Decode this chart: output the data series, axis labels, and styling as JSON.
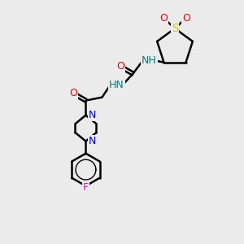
{
  "background_color": "#ebebeb",
  "bond_color": "#000000",
  "atom_colors": {
    "N": "#0000ff",
    "O": "#ff0000",
    "S": "#cccc00",
    "F": "#ff00ff",
    "H_label": "#008080",
    "C": "#000000"
  },
  "figsize": [
    3.0,
    3.0
  ],
  "dpi": 100
}
